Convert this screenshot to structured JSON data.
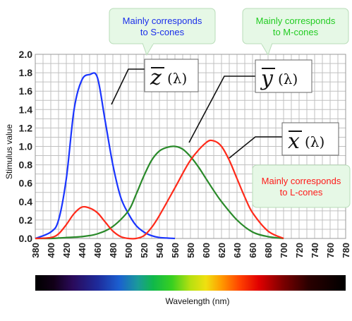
{
  "chart_data": {
    "type": "line",
    "xlabel": "Wavelength (nm)",
    "ylabel": "Stimulus value",
    "xlim": [
      380,
      780
    ],
    "ylim": [
      0,
      2.0
    ],
    "x_ticks": [
      380,
      400,
      420,
      440,
      460,
      480,
      500,
      520,
      540,
      560,
      580,
      600,
      620,
      640,
      660,
      680,
      700,
      720,
      740,
      760,
      780
    ],
    "y_ticks": [
      "0.0",
      "0.2",
      "0.4",
      "0.6",
      "0.8",
      "1.0",
      "1.2",
      "1.4",
      "1.6",
      "1.8",
      "2.0"
    ],
    "grid": true,
    "series": [
      {
        "name": "z̄(λ)",
        "color": "#1a35ff",
        "x": [
          380,
          400,
          410,
          420,
          430,
          440,
          450,
          460,
          470,
          480,
          490,
          500,
          510,
          520,
          530,
          540,
          560
        ],
        "y": [
          0.0,
          0.07,
          0.2,
          0.65,
          1.4,
          1.72,
          1.78,
          1.75,
          1.28,
          0.8,
          0.45,
          0.27,
          0.14,
          0.07,
          0.03,
          0.01,
          0.0
        ]
      },
      {
        "name": "ȳ(λ)",
        "color": "#2a8a2a",
        "x": [
          380,
          400,
          420,
          440,
          460,
          480,
          500,
          510,
          520,
          530,
          540,
          550,
          560,
          570,
          580,
          590,
          600,
          610,
          620,
          640,
          660,
          680,
          700
        ],
        "y": [
          0.0,
          0.0,
          0.01,
          0.02,
          0.05,
          0.13,
          0.3,
          0.48,
          0.68,
          0.85,
          0.95,
          0.99,
          1.0,
          0.97,
          0.89,
          0.78,
          0.65,
          0.52,
          0.4,
          0.2,
          0.07,
          0.02,
          0.0
        ]
      },
      {
        "name": "x̄(λ)",
        "color": "#ff2a1a",
        "x": [
          380,
          400,
          410,
          420,
          430,
          440,
          450,
          460,
          470,
          480,
          490,
          500,
          510,
          520,
          530,
          540,
          560,
          580,
          600,
          610,
          620,
          630,
          640,
          650,
          660,
          680,
          700
        ],
        "y": [
          0.0,
          0.01,
          0.05,
          0.15,
          0.27,
          0.34,
          0.33,
          0.28,
          0.18,
          0.08,
          0.02,
          0.0,
          0.0,
          0.03,
          0.12,
          0.25,
          0.55,
          0.85,
          1.04,
          1.06,
          1.0,
          0.85,
          0.65,
          0.45,
          0.28,
          0.08,
          0.0
        ]
      }
    ],
    "annotations": [
      {
        "text": [
          "Mainly corresponds",
          "to S-cones"
        ],
        "color": "#1a2eea"
      },
      {
        "text": [
          "Mainly corresponds",
          "to M-cones"
        ],
        "color": "#22cc22"
      },
      {
        "text": [
          "Mainly corresponds",
          "to L-cones"
        ],
        "color": "#ff1a1a"
      }
    ],
    "formula_labels": [
      {
        "symbol": "z",
        "arg": "(λ)"
      },
      {
        "symbol": "y",
        "arg": "(λ)"
      },
      {
        "symbol": "x",
        "arg": "(λ)"
      }
    ]
  }
}
